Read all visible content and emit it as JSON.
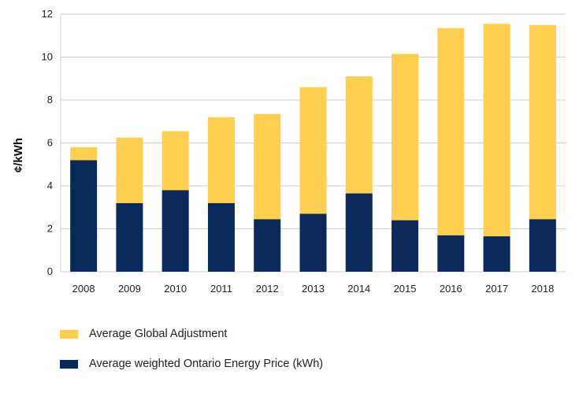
{
  "chart_data": {
    "type": "bar",
    "stacked": true,
    "categories": [
      "2008",
      "2009",
      "2010",
      "2011",
      "2012",
      "2013",
      "2014",
      "2015",
      "2016",
      "2017",
      "2018"
    ],
    "series": [
      {
        "name": "Average weighted Ontario Energy Price (kWh)",
        "color": "#0b2a5b",
        "values": [
          5.2,
          3.2,
          3.8,
          3.2,
          2.45,
          2.7,
          3.65,
          2.4,
          1.7,
          1.65,
          2.45
        ]
      },
      {
        "name": "Average Global Adjustment",
        "color": "#ffd04f",
        "values": [
          0.6,
          3.05,
          2.75,
          4.0,
          4.9,
          5.9,
          5.45,
          7.75,
          9.65,
          9.9,
          9.05
        ]
      }
    ],
    "y_ticks": [
      "0",
      "2",
      "4",
      "6",
      "8",
      "10",
      "12"
    ],
    "ylabel": "¢/kWh",
    "xlabel": "",
    "ylim": [
      0,
      12
    ],
    "grid": true,
    "legend_position": "bottom-left"
  },
  "legend": [
    {
      "label": "Average Global Adjustment",
      "color": "#ffd04f"
    },
    {
      "label": "Average weighted Ontario Energy Price (kWh)",
      "color": "#0b2a5b"
    }
  ]
}
